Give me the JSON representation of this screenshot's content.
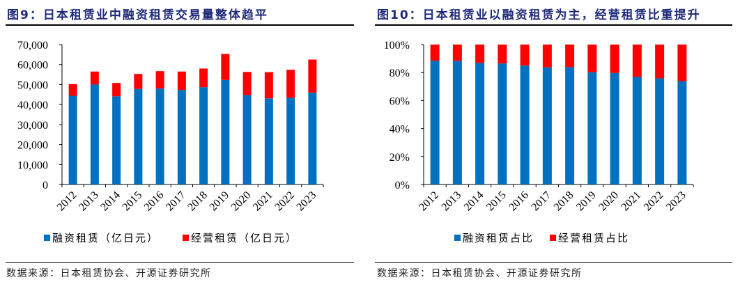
{
  "colors": {
    "blue": "#0070c0",
    "red": "#ff0000",
    "title": "#1f2a7a"
  },
  "panels": [
    {
      "title": "图9：日本租赁业中融资租赁交易量整体趋平",
      "source": "数据来源：日本租赁协会、开源证券研究所"
    },
    {
      "title": "图10：日本租赁业以融资租赁为主，经营租赁比重提升",
      "source": "数据来源：日本租赁协会、开源证券研究所"
    }
  ],
  "chart_data": [
    {
      "type": "bar",
      "stacked": true,
      "categories": [
        "2012",
        "2013",
        "2014",
        "2015",
        "2016",
        "2017",
        "2018",
        "2019",
        "2020",
        "2021",
        "2022",
        "2023"
      ],
      "series": [
        {
          "name": "融资租赁（亿日元）",
          "color": "#0070c0",
          "values": [
            44400,
            50000,
            44100,
            47800,
            48000,
            47300,
            48700,
            52300,
            44700,
            43100,
            43400,
            46000
          ]
        },
        {
          "name": "经营租赁（亿日元）",
          "color": "#ff0000",
          "values": [
            5800,
            6500,
            6700,
            7500,
            8700,
            9200,
            9300,
            13000,
            11600,
            13100,
            14000,
            16500
          ]
        }
      ],
      "yticks": [
        "0",
        "10,000",
        "20,000",
        "30,000",
        "40,000",
        "50,000",
        "60,000",
        "70,000"
      ],
      "ylim": [
        0,
        70000
      ],
      "legend": "bottom",
      "grid": false
    },
    {
      "type": "bar",
      "stacked": true,
      "categories": [
        "2012",
        "2013",
        "2014",
        "2015",
        "2016",
        "2017",
        "2018",
        "2019",
        "2020",
        "2021",
        "2022",
        "2023"
      ],
      "series": [
        {
          "name": "融资租赁占比",
          "color": "#0070c0",
          "values": [
            88.4,
            88.4,
            86.9,
            86.5,
            85.0,
            83.7,
            83.9,
            80.2,
            79.7,
            76.9,
            75.9,
            73.9
          ]
        },
        {
          "name": "经营租赁占比",
          "color": "#ff0000",
          "values": [
            11.6,
            11.6,
            13.1,
            13.5,
            15.0,
            16.3,
            16.1,
            19.8,
            20.3,
            23.1,
            24.1,
            26.1
          ]
        }
      ],
      "yticks": [
        "0%",
        "20%",
        "40%",
        "60%",
        "80%",
        "100%"
      ],
      "ylim": [
        0,
        100
      ],
      "legend": "bottom",
      "grid": false
    }
  ]
}
